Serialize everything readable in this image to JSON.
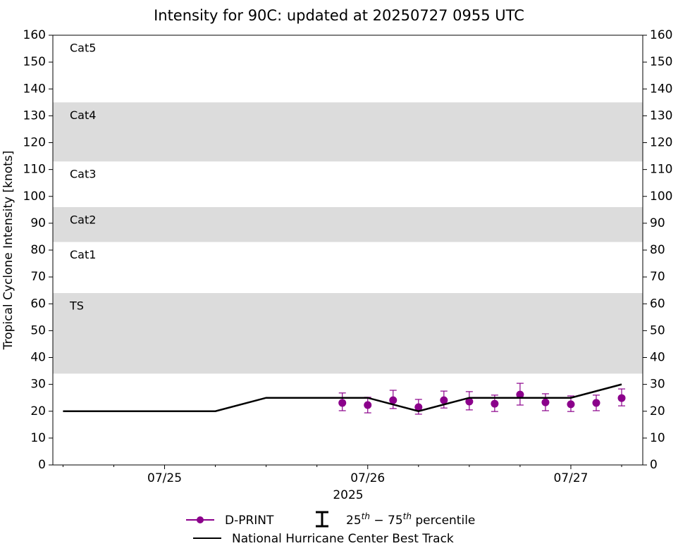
{
  "chart_data": {
    "type": "line",
    "title": "Intensity for 90C: updated at 20250727 0955 UTC",
    "y_label": "Tropical Cyclone Intensity [knots]",
    "x_label": "2025",
    "xlim": [
      24.45,
      27.354
    ],
    "xticks": [
      {
        "value": 25,
        "label": "07/25"
      },
      {
        "value": 26,
        "label": "07/26"
      },
      {
        "value": 27,
        "label": "07/27"
      }
    ],
    "xminorticks": [
      24.5,
      24.75,
      25.25,
      25.5,
      25.75,
      26.25,
      26.5,
      26.75,
      27.25
    ],
    "ylim": [
      0,
      160
    ],
    "yticks": [
      0,
      10,
      20,
      30,
      40,
      50,
      60,
      70,
      80,
      90,
      100,
      110,
      120,
      130,
      140,
      150,
      160
    ],
    "y2lim": [
      0,
      160
    ],
    "y2ticks": [
      0,
      10,
      20,
      30,
      40,
      50,
      60,
      70,
      80,
      90,
      100,
      110,
      120,
      130,
      140,
      150,
      160
    ],
    "bands": [
      {
        "name": "TS",
        "from": 34,
        "to": 64,
        "shaded": true
      },
      {
        "name": "Cat1",
        "from": 64,
        "to": 83,
        "shaded": false
      },
      {
        "name": "Cat2",
        "from": 83,
        "to": 96,
        "shaded": true
      },
      {
        "name": "Cat3",
        "from": 96,
        "to": 113,
        "shaded": false
      },
      {
        "name": "Cat4",
        "from": 113,
        "to": 135,
        "shaded": true
      },
      {
        "name": "Cat5",
        "from": 135,
        "to": 160,
        "shaded": false
      }
    ],
    "band_color": "#dcdcdc",
    "series": [
      {
        "name": "D-PRINT",
        "color": "#8b008b",
        "style": "markers",
        "x": [
          25.875,
          26.0,
          26.125,
          26.25,
          26.375,
          26.5,
          26.625,
          26.75,
          26.875,
          27.0,
          27.125,
          27.25
        ],
        "values": [
          23.1,
          22.3,
          24.1,
          21.5,
          24.1,
          23.6,
          22.8,
          26.2,
          23.3,
          22.6,
          23.1,
          24.9
        ],
        "p25": [
          20.2,
          19.4,
          21.0,
          18.9,
          21.2,
          20.5,
          19.9,
          22.3,
          20.2,
          19.9,
          20.2,
          22.0
        ],
        "p75": [
          26.8,
          25.2,
          27.8,
          24.4,
          27.5,
          27.3,
          26.0,
          30.4,
          26.5,
          25.7,
          26.0,
          28.3
        ]
      },
      {
        "name": "National Hurricane Center Best Track",
        "color": "#000000",
        "style": "line",
        "x": [
          24.5,
          24.75,
          25.0,
          25.25,
          25.5,
          25.75,
          26.0,
          26.25,
          26.5,
          26.75,
          27.0,
          27.25
        ],
        "values": [
          20,
          20,
          20,
          20,
          25,
          25,
          25,
          20,
          25,
          25,
          25,
          30
        ]
      }
    ],
    "percentile_legend": [
      {
        "text": "25",
        "sup": false
      },
      {
        "text": "th",
        "sup": true
      },
      {
        "text": " − 75",
        "sup": false
      },
      {
        "text": "th",
        "sup": true
      },
      {
        "text": " percentile",
        "sup": false
      }
    ]
  }
}
